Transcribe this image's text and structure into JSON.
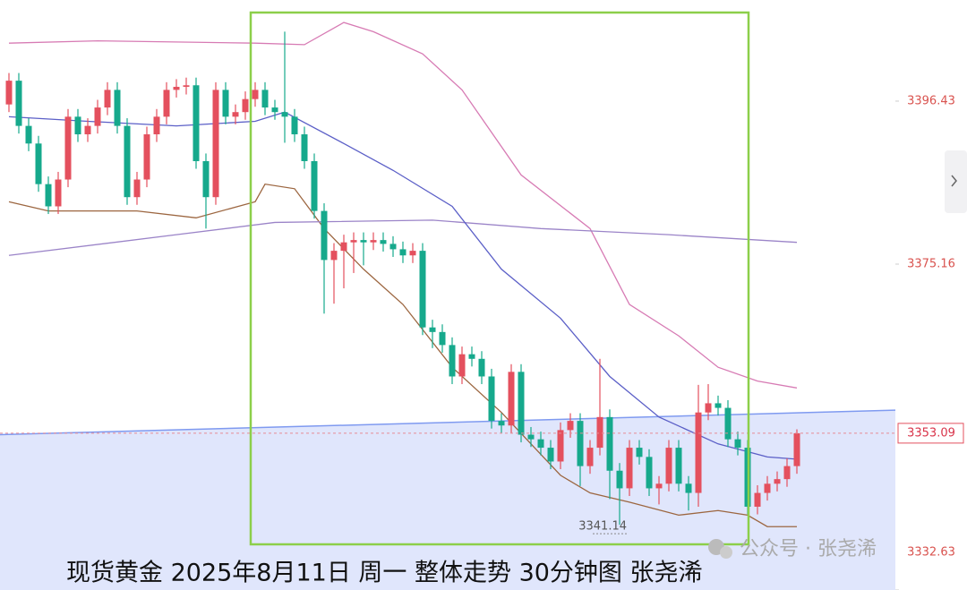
{
  "chart_data": {
    "type": "candlestick",
    "title": "现货黄金 2025年8月11日 周一 整体走势 30分钟图 张尧浠",
    "watermark": "公众号 · 张尧浠",
    "ylim": [
      3332.63,
      3409.63
    ],
    "yticks": [
      3396.43,
      3375.16,
      3332.63
    ],
    "up_color": "#e4505e",
    "down_color": "#16a98c",
    "candles": {
      "open": [
        3396.0,
        3399.1,
        3393.2,
        3390.9,
        3385.6,
        3382.7,
        3386.2,
        3394.4,
        3392.1,
        3393.2,
        3395.6,
        3397.9,
        3393.2,
        3383.9,
        3386.2,
        3392.1,
        3394.4,
        3397.9,
        3398.3,
        3398.5,
        3388.6,
        3383.9,
        3397.9,
        3394.4,
        3395.0,
        3396.7,
        3397.9,
        3395.6,
        3395.0,
        3394.4,
        3392.1,
        3388.6,
        3382.1,
        3375.7,
        3376.9,
        3378.0,
        3378.3,
        3378.0,
        3378.3,
        3377.8,
        3377.1,
        3376.3,
        3376.9,
        3366.9,
        3366.3,
        3364.6,
        3360.5,
        3363.4,
        3362.8,
        3360.5,
        3354.7,
        3354.1,
        3361.1,
        3352.9,
        3352.3,
        3351.2,
        3349.4,
        3353.5,
        3354.7,
        3348.8,
        3351.2,
        3355.2,
        3348.2,
        3345.9,
        3351.2,
        3350.0,
        3345.9,
        3346.5,
        3351.2,
        3346.5,
        3345.3,
        3355.8,
        3357.0,
        3356.4,
        3352.3,
        3351.2,
        3343.5,
        3345.3,
        3346.5,
        3347.1,
        3348.8
      ],
      "close": [
        3399.1,
        3393.2,
        3390.9,
        3385.6,
        3382.7,
        3386.2,
        3394.4,
        3392.1,
        3393.2,
        3395.6,
        3397.9,
        3393.2,
        3383.9,
        3386.2,
        3392.1,
        3394.4,
        3397.9,
        3398.3,
        3398.5,
        3388.6,
        3383.9,
        3397.9,
        3394.4,
        3395.0,
        3396.7,
        3397.9,
        3395.6,
        3395.0,
        3394.4,
        3392.1,
        3388.6,
        3382.1,
        3375.7,
        3376.9,
        3378.0,
        3378.3,
        3378.0,
        3378.3,
        3377.8,
        3377.1,
        3376.3,
        3376.9,
        3366.9,
        3366.3,
        3364.6,
        3360.5,
        3363.4,
        3362.8,
        3360.5,
        3354.7,
        3354.1,
        3361.1,
        3352.9,
        3352.3,
        3351.2,
        3349.4,
        3353.5,
        3354.7,
        3348.8,
        3351.2,
        3355.2,
        3348.2,
        3345.9,
        3351.2,
        3350.0,
        3345.9,
        3346.5,
        3351.2,
        3346.5,
        3345.3,
        3355.8,
        3357.0,
        3356.4,
        3352.3,
        3351.2,
        3343.5,
        3345.3,
        3346.5,
        3347.1,
        3348.8,
        3353.09
      ],
      "high": [
        3400.1,
        3400.1,
        3394.2,
        3391.9,
        3386.6,
        3387.2,
        3395.4,
        3395.4,
        3394.2,
        3396.6,
        3398.9,
        3398.9,
        3394.2,
        3387.2,
        3393.1,
        3395.4,
        3398.9,
        3399.3,
        3399.5,
        3399.5,
        3389.6,
        3398.9,
        3398.9,
        3396.0,
        3397.7,
        3398.9,
        3398.9,
        3396.6,
        3405.5,
        3395.4,
        3393.1,
        3389.6,
        3383.1,
        3377.9,
        3379.0,
        3379.3,
        3379.3,
        3379.3,
        3379.3,
        3378.8,
        3378.1,
        3377.9,
        3377.9,
        3367.9,
        3367.3,
        3365.6,
        3364.4,
        3364.4,
        3363.8,
        3361.5,
        3355.7,
        3362.1,
        3362.1,
        3353.9,
        3353.3,
        3352.2,
        3354.5,
        3355.7,
        3355.7,
        3352.2,
        3362.8,
        3356.2,
        3349.2,
        3352.2,
        3352.2,
        3351.0,
        3347.5,
        3352.2,
        3352.2,
        3347.5,
        3359.4,
        3359.5,
        3358.0,
        3357.4,
        3353.3,
        3352.2,
        3346.3,
        3347.5,
        3348.1,
        3349.8,
        3353.6
      ],
      "low": [
        3395.0,
        3392.2,
        3389.9,
        3384.6,
        3381.7,
        3381.7,
        3385.2,
        3391.1,
        3391.1,
        3392.2,
        3394.6,
        3392.2,
        3382.9,
        3382.9,
        3385.2,
        3391.1,
        3393.4,
        3396.9,
        3397.3,
        3387.6,
        3379.8,
        3382.9,
        3393.4,
        3393.4,
        3394.0,
        3395.7,
        3394.6,
        3394.0,
        3391.0,
        3391.1,
        3387.6,
        3381.1,
        3368.7,
        3370.0,
        3372.0,
        3374.0,
        3375.0,
        3377.0,
        3376.8,
        3376.1,
        3375.3,
        3375.3,
        3365.9,
        3364.2,
        3363.6,
        3359.5,
        3359.5,
        3361.8,
        3359.5,
        3353.7,
        3353.1,
        3353.1,
        3351.9,
        3351.3,
        3350.2,
        3348.4,
        3348.4,
        3352.5,
        3346.2,
        3347.8,
        3350.2,
        3344.5,
        3341.14,
        3344.9,
        3349.0,
        3344.9,
        3343.8,
        3345.5,
        3345.5,
        3343.0,
        3343.5,
        3354.8,
        3355.4,
        3351.3,
        3350.2,
        3342.5,
        3342.5,
        3344.3,
        3345.5,
        3346.1,
        3347.8
      ]
    },
    "lines": [
      {
        "color": "#d77bb4",
        "x": [
          0,
          9,
          25,
          30,
          34,
          37,
          42,
          46,
          52,
          59,
          63,
          68,
          72,
          76,
          80
        ],
        "values": [
          3404.0,
          3404.3,
          3404.0,
          3403.8,
          3406.7,
          3405.5,
          3402.6,
          3397.9,
          3386.8,
          3379.8,
          3369.9,
          3365.8,
          3361.7,
          3359.9,
          3359.0
        ]
      },
      {
        "color": "#9c6640",
        "x": [
          0,
          4,
          13,
          19,
          25,
          26,
          29,
          32,
          36,
          40,
          45,
          50,
          56,
          59,
          63,
          68,
          72,
          75,
          77,
          80
        ],
        "values": [
          3383.3,
          3382.1,
          3382.1,
          3381.2,
          3383.3,
          3385.6,
          3385.0,
          3379.8,
          3374.5,
          3369.9,
          3361.7,
          3355.8,
          3347.6,
          3345.3,
          3344.1,
          3342.4,
          3343.0,
          3342.4,
          3340.9,
          3340.9
        ]
      },
      {
        "color": "#9b84c8",
        "x": [
          0,
          17,
          27,
          43,
          54,
          67,
          80
        ],
        "values": [
          3376.3,
          3379.0,
          3380.6,
          3380.9,
          3379.8,
          3379.0,
          3378.0
        ]
      },
      {
        "color": "#5b5fc7",
        "x": [
          0,
          8,
          17,
          25,
          28,
          34,
          39,
          45,
          50,
          56,
          61,
          66,
          72,
          77,
          80
        ],
        "values": [
          3394.4,
          3393.8,
          3393.2,
          3393.8,
          3395.0,
          3390.9,
          3387.4,
          3382.7,
          3374.5,
          3368.1,
          3360.5,
          3355.2,
          3351.7,
          3350.0,
          3349.7
        ]
      }
    ],
    "trendline": {
      "color": "#7f9af0",
      "x": [
        -1,
        90
      ],
      "values": [
        3352.9,
        3356.1
      ]
    }
  }
}
